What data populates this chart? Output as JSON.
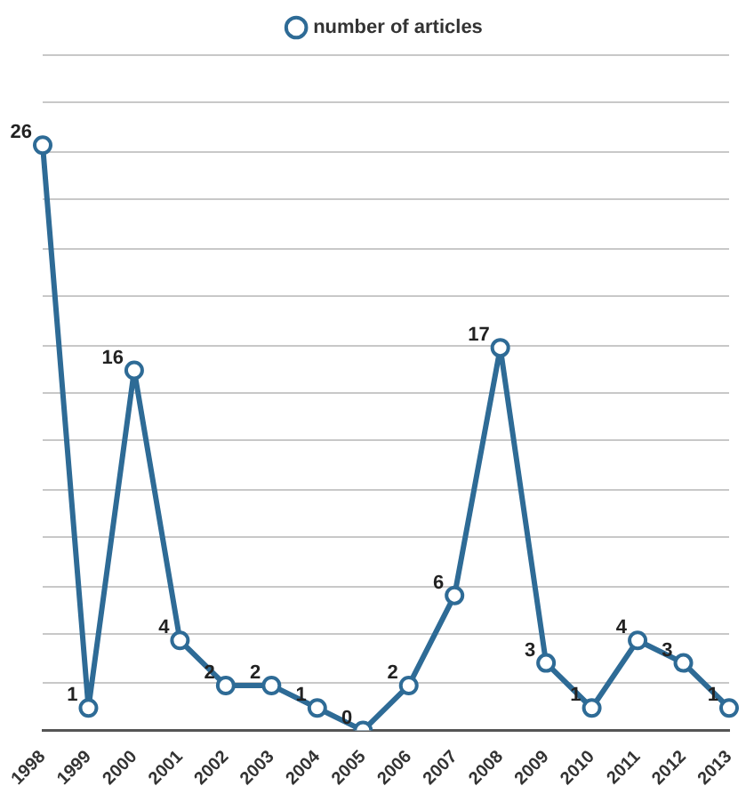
{
  "chart_data": {
    "type": "line",
    "categories": [
      "1998",
      "1999",
      "2000",
      "2001",
      "2002",
      "2003",
      "2004",
      "2005",
      "2006",
      "2007",
      "2008",
      "2009",
      "2010",
      "2011",
      "2012",
      "2013"
    ],
    "series": [
      {
        "name": "number of articles",
        "color": "#2e6b96",
        "values": [
          26,
          1,
          16,
          4,
          2,
          2,
          1,
          0,
          2,
          6,
          17,
          3,
          1,
          4,
          3,
          1
        ]
      }
    ],
    "ylim": [
      0,
      30
    ],
    "yticks": [
      {
        "value": 0,
        "label": null
      },
      {
        "value": 2.1,
        "label": null
      },
      {
        "value": 4.3,
        "label": null
      },
      {
        "value": 6.4,
        "label": null
      },
      {
        "value": 8.6,
        "label": null
      },
      {
        "value": 10.7,
        "label": null
      },
      {
        "value": 12.9,
        "label": null
      },
      {
        "value": 15,
        "label": null
      },
      {
        "value": 17.1,
        "label": null
      },
      {
        "value": 19.3,
        "label": null
      },
      {
        "value": 21.4,
        "label": null
      },
      {
        "value": 23.6,
        "label": null
      },
      {
        "value": 25.7,
        "label": null
      },
      {
        "value": 27.9,
        "label": null
      },
      {
        "value": 30,
        "label": null
      }
    ],
    "grid": "y",
    "legend": "top",
    "marker": "circle",
    "line_style": "solid",
    "data_labels": true,
    "tick_labels": "x"
  }
}
